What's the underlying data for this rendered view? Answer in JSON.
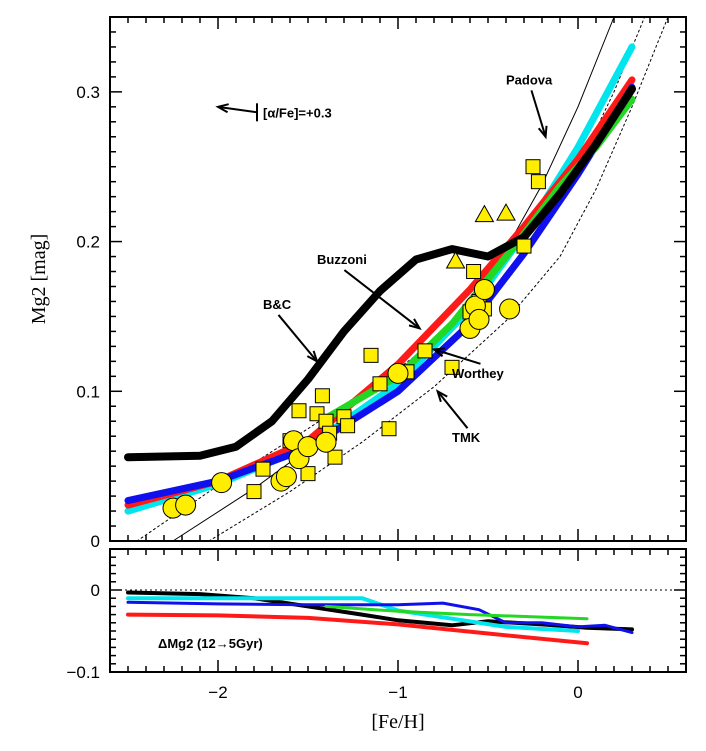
{
  "chart_data": [
    {
      "type": "line",
      "title": "",
      "xlabel": "[Fe/H]",
      "ylabel": "Mg2 [mag]",
      "xlim": [
        -2.6,
        0.6
      ],
      "ylim": [
        0,
        0.35
      ],
      "xticks": [
        -2,
        -1,
        0
      ],
      "xtick_labels": [
        "−2",
        "−1",
        "0"
      ],
      "yticks": [
        0,
        0.1,
        0.2,
        0.3
      ],
      "ytick_labels": [
        "0",
        "0.1",
        "0.2",
        "0.3"
      ],
      "grid": false,
      "legend": "none",
      "series": [
        {
          "name": "Padova",
          "color": "#00e5ee",
          "width": 7,
          "style": "solid",
          "x": [
            -2.5,
            -2.0,
            -1.5,
            -1.0,
            -0.6,
            -0.3,
            0.0,
            0.3
          ],
          "y": [
            0.02,
            0.038,
            0.063,
            0.105,
            0.155,
            0.205,
            0.263,
            0.33
          ]
        },
        {
          "name": "",
          "color": "#ff1a1a",
          "width": 7,
          "style": "solid",
          "x": [
            -2.5,
            -2.0,
            -1.5,
            -1.0,
            -0.6,
            -0.3,
            0.0,
            0.3
          ],
          "y": [
            0.024,
            0.04,
            0.067,
            0.118,
            0.168,
            0.21,
            0.255,
            0.308
          ]
        },
        {
          "name": "Worthey",
          "color": "#1010ee",
          "width": 7,
          "style": "solid",
          "x": [
            -2.5,
            -2.0,
            -1.5,
            -1.0,
            -0.6,
            -0.3,
            0.0,
            0.3
          ],
          "y": [
            0.027,
            0.04,
            0.062,
            0.1,
            0.145,
            0.192,
            0.245,
            0.303
          ]
        },
        {
          "name": "TMK",
          "color": "#22d822",
          "width": 7,
          "style": "solid",
          "x": [
            -1.4,
            -1.0,
            -0.7,
            -0.5,
            -0.3,
            -0.1,
            0.1,
            0.3
          ],
          "y": [
            0.082,
            0.11,
            0.145,
            0.175,
            0.205,
            0.237,
            0.263,
            0.295
          ]
        },
        {
          "name": "B&C",
          "color": "#000000",
          "width": 8,
          "style": "solid",
          "x": [
            -2.5,
            -2.1,
            -1.9,
            -1.7,
            -1.5,
            -1.3,
            -1.1,
            -0.9,
            -0.7,
            -0.5,
            -0.3,
            -0.1,
            0.1,
            0.3
          ],
          "y": [
            0.056,
            0.057,
            0.063,
            0.08,
            0.108,
            0.14,
            0.167,
            0.188,
            0.195,
            0.19,
            0.203,
            0.232,
            0.265,
            0.302
          ]
        },
        {
          "name": "",
          "color": "#000000",
          "width": 1,
          "style": "solid",
          "x": [
            -2.25,
            -1.8,
            -1.4,
            -1.0,
            -0.7,
            -0.4,
            -0.2,
            0.0,
            0.2
          ],
          "y": [
            0.0,
            0.035,
            0.07,
            0.107,
            0.142,
            0.195,
            0.238,
            0.29,
            0.35
          ]
        },
        {
          "name": "",
          "color": "#000000",
          "width": 1,
          "style": "dotted",
          "x": [
            -2.45,
            -2.0,
            -1.5,
            -1.0,
            -0.5,
            -0.2,
            0.0,
            0.2,
            0.37
          ],
          "y": [
            0.0,
            0.037,
            0.075,
            0.115,
            0.16,
            0.21,
            0.25,
            0.3,
            0.35
          ]
        },
        {
          "name": "",
          "color": "#000000",
          "width": 1,
          "style": "dotted",
          "x": [
            -2.05,
            -1.6,
            -1.2,
            -0.8,
            -0.4,
            -0.1,
            0.1,
            0.3,
            0.5
          ],
          "y": [
            0.0,
            0.033,
            0.066,
            0.103,
            0.147,
            0.19,
            0.235,
            0.29,
            0.35
          ]
        }
      ],
      "points_squares": {
        "x": [
          -1.8,
          -1.75,
          -1.6,
          -1.55,
          -1.5,
          -1.45,
          -1.42,
          -1.4,
          -1.38,
          -1.35,
          -1.3,
          -1.28,
          -1.15,
          -1.1,
          -1.05,
          -0.95,
          -0.85,
          -0.7,
          -0.6,
          -0.58,
          -0.55,
          -0.52,
          -0.3,
          -0.25,
          -0.22
        ],
        "y": [
          0.033,
          0.048,
          0.067,
          0.087,
          0.045,
          0.085,
          0.097,
          0.08,
          0.072,
          0.056,
          0.083,
          0.077,
          0.124,
          0.105,
          0.075,
          0.113,
          0.127,
          0.116,
          0.153,
          0.18,
          0.16,
          0.155,
          0.197,
          0.25,
          0.24
        ]
      },
      "points_circles": {
        "x": [
          -2.25,
          -2.18,
          -1.98,
          -1.65,
          -1.62,
          -1.58,
          -1.55,
          -1.5,
          -1.4,
          -1.0,
          -0.6,
          -0.57,
          -0.55,
          -0.52,
          -0.38
        ],
        "y": [
          0.022,
          0.024,
          0.039,
          0.04,
          0.043,
          0.067,
          0.055,
          0.063,
          0.066,
          0.112,
          0.142,
          0.157,
          0.148,
          0.168,
          0.155
        ]
      },
      "points_triangles": {
        "x": [
          -0.68,
          -0.52,
          -0.4
        ],
        "y": [
          0.187,
          0.218,
          0.219
        ]
      },
      "annotations": [
        {
          "text": "Padova",
          "x": -0.4,
          "y": 0.305,
          "arrow_to": [
            -0.18,
            0.27
          ]
        },
        {
          "text": "Buzzoni",
          "x": -1.45,
          "y": 0.185,
          "arrow_to": [
            -0.88,
            0.142
          ]
        },
        {
          "text": "B&C",
          "x": -1.75,
          "y": 0.155,
          "arrow_to": [
            -1.45,
            0.12
          ]
        },
        {
          "text": "Worthey",
          "x": -0.7,
          "y": 0.109,
          "arrow_to": [
            -0.8,
            0.128
          ]
        },
        {
          "text": "TMK",
          "x": -0.7,
          "y": 0.066,
          "arrow_to": [
            -0.78,
            0.1
          ]
        },
        {
          "text": "[α/Fe]=+0.3",
          "x": -1.75,
          "y": 0.283,
          "arrow_to": [
            -2.0,
            0.29
          ]
        }
      ]
    },
    {
      "type": "line",
      "title": "",
      "xlabel": "[Fe/H]",
      "ylabel": "",
      "xlim": [
        -2.6,
        0.6
      ],
      "ylim": [
        -0.1,
        0.05
      ],
      "yticks": [
        -0.1,
        0
      ],
      "ytick_labels": [
        "−0.1",
        "0"
      ],
      "grid": false,
      "legend": "none",
      "zero_line": "dotted",
      "label": "ΔMg2 (12→5Gyr)",
      "series": [
        {
          "name": "",
          "color": "#000000",
          "width": 4,
          "x": [
            -2.5,
            -2.1,
            -1.8,
            -1.5,
            -1.2,
            -1.0,
            -0.7,
            -0.5,
            -0.2,
            0.05,
            0.3
          ],
          "y": [
            -0.003,
            -0.005,
            -0.01,
            -0.02,
            -0.03,
            -0.037,
            -0.043,
            -0.038,
            -0.042,
            -0.046,
            -0.048
          ]
        },
        {
          "name": "",
          "color": "#00e5ee",
          "width": 4,
          "x": [
            -2.5,
            -2.0,
            -1.5,
            -1.2,
            -1.0,
            -0.7,
            -0.4,
            0.0
          ],
          "y": [
            -0.01,
            -0.01,
            -0.01,
            -0.01,
            -0.025,
            -0.035,
            -0.045,
            -0.05
          ]
        },
        {
          "name": "",
          "color": "#1010ee",
          "width": 3,
          "x": [
            -2.5,
            -2.0,
            -1.5,
            -1.0,
            -0.75,
            -0.55,
            -0.4,
            -0.2,
            0.0,
            0.15,
            0.3
          ],
          "y": [
            -0.015,
            -0.017,
            -0.018,
            -0.018,
            -0.016,
            -0.024,
            -0.04,
            -0.04,
            -0.045,
            -0.043,
            -0.052
          ]
        },
        {
          "name": "",
          "color": "#22d822",
          "width": 3,
          "x": [
            -1.4,
            -1.0,
            -0.6,
            -0.2,
            0.05
          ],
          "y": [
            -0.02,
            -0.026,
            -0.03,
            -0.033,
            -0.035
          ]
        },
        {
          "name": "",
          "color": "#ff1a1a",
          "width": 4,
          "x": [
            -2.5,
            -2.0,
            -1.5,
            -1.0,
            -0.5,
            0.05
          ],
          "y": [
            -0.03,
            -0.031,
            -0.034,
            -0.042,
            -0.053,
            -0.065
          ]
        }
      ]
    }
  ]
}
